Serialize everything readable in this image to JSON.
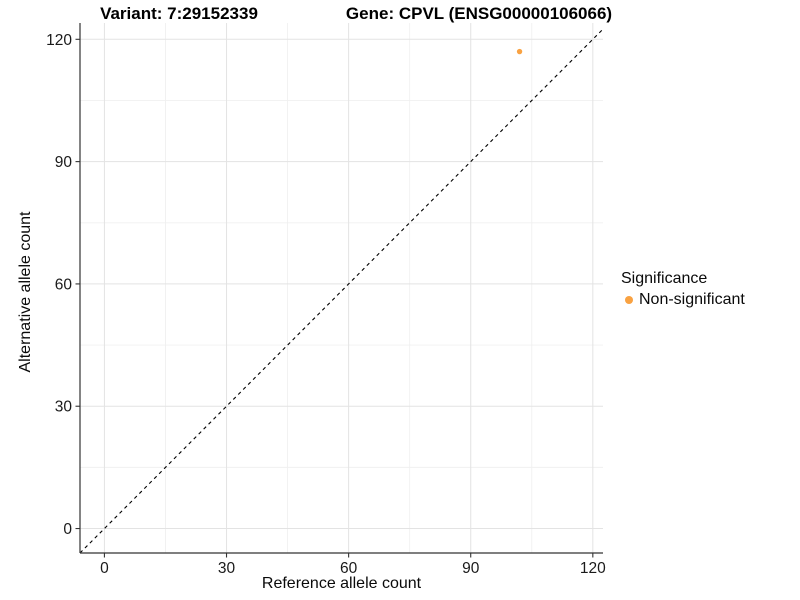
{
  "chart_data": {
    "type": "scatter",
    "title_left": "Variant: 7:29152339",
    "title_right": "Gene: CPVL (ENSG00000106066)",
    "xlabel": "Reference allele count",
    "ylabel": "Alternative allele count",
    "x_ticks": [
      0,
      30,
      60,
      90,
      120
    ],
    "y_ticks": [
      0,
      30,
      60,
      90,
      120
    ],
    "x_minor_ticks": [
      15,
      45,
      75,
      105
    ],
    "y_minor_ticks": [
      15,
      45,
      75,
      105
    ],
    "xlim": [
      -6,
      122.5
    ],
    "ylim": [
      -6,
      124
    ],
    "grid": true,
    "identity_line": {
      "style": "dashed",
      "slope": 1,
      "intercept": 0,
      "color": "#000000"
    },
    "points": [
      {
        "x": 102,
        "y": 117,
        "series": "Non-significant"
      }
    ],
    "legend": {
      "title": "Significance",
      "position": "right",
      "items": [
        {
          "label": "Non-significant",
          "color": "#F9A242"
        }
      ]
    },
    "colors": {
      "point": "#F9A242",
      "major_grid": "#e3e3e3",
      "minor_grid": "#f0f0f0",
      "axis_line": "#333333",
      "tick_text": "#1a1a1a"
    }
  }
}
